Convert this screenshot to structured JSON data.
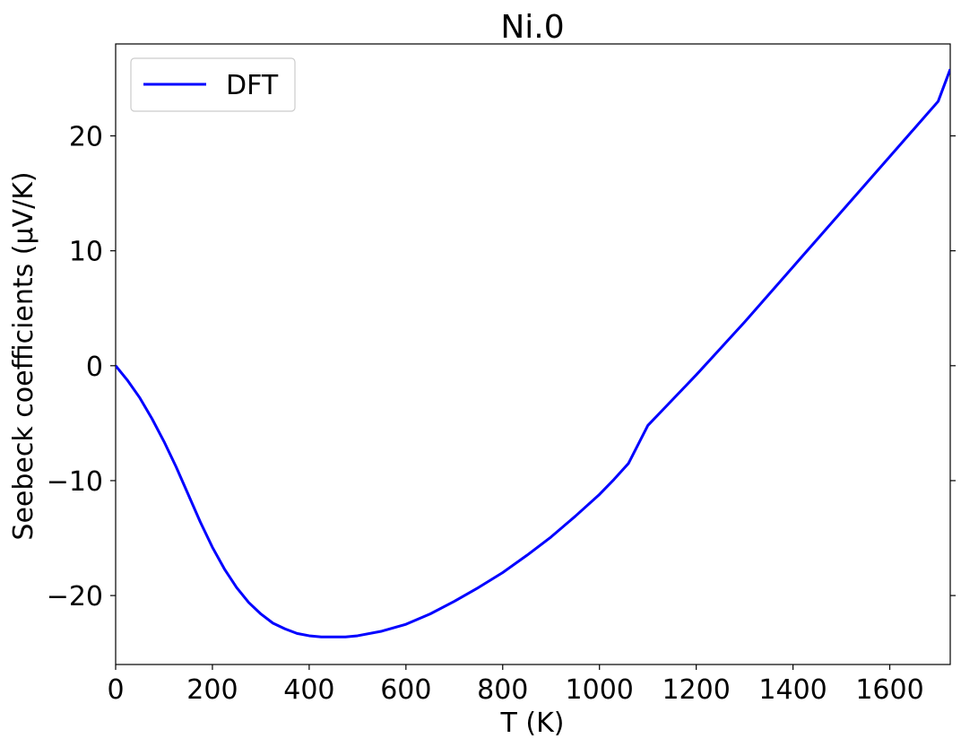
{
  "chart_data": {
    "type": "line",
    "title": "Ni.0",
    "xlabel": "T (K)",
    "ylabel": "Seebeck coefficients (μV/K)",
    "xlim": [
      0,
      1725
    ],
    "ylim": [
      -26,
      28
    ],
    "xticks": [
      0,
      200,
      400,
      600,
      800,
      1000,
      1200,
      1400,
      1600
    ],
    "xtick_labels": [
      "0",
      "200",
      "400",
      "600",
      "800",
      "1000",
      "1200",
      "1400",
      "1600"
    ],
    "yticks": [
      -20,
      -10,
      0,
      10,
      20
    ],
    "ytick_labels": [
      "−20",
      "−10",
      "0",
      "10",
      "20"
    ],
    "legend_position": "top-left",
    "series": [
      {
        "name": "DFT",
        "color": "#0000ff",
        "x": [
          0,
          25,
          50,
          75,
          100,
          125,
          150,
          175,
          200,
          225,
          250,
          275,
          300,
          325,
          350,
          375,
          400,
          425,
          450,
          475,
          500,
          550,
          600,
          650,
          700,
          750,
          800,
          850,
          900,
          950,
          1000,
          1030,
          1060,
          1100,
          1150,
          1200,
          1250,
          1300,
          1350,
          1400,
          1450,
          1500,
          1550,
          1600,
          1650,
          1700,
          1725
        ],
        "y": [
          0,
          -1.3,
          -2.8,
          -4.6,
          -6.6,
          -8.8,
          -11.2,
          -13.6,
          -15.8,
          -17.7,
          -19.3,
          -20.6,
          -21.6,
          -22.4,
          -22.9,
          -23.3,
          -23.5,
          -23.6,
          -23.6,
          -23.6,
          -23.5,
          -23.1,
          -22.5,
          -21.6,
          -20.5,
          -19.3,
          -18.0,
          -16.5,
          -14.9,
          -13.1,
          -11.2,
          -9.9,
          -8.5,
          -5.2,
          -3.0,
          -0.8,
          1.5,
          3.8,
          6.2,
          8.6,
          11.0,
          13.4,
          15.8,
          18.2,
          20.6,
          23.0,
          25.8
        ]
      }
    ]
  }
}
